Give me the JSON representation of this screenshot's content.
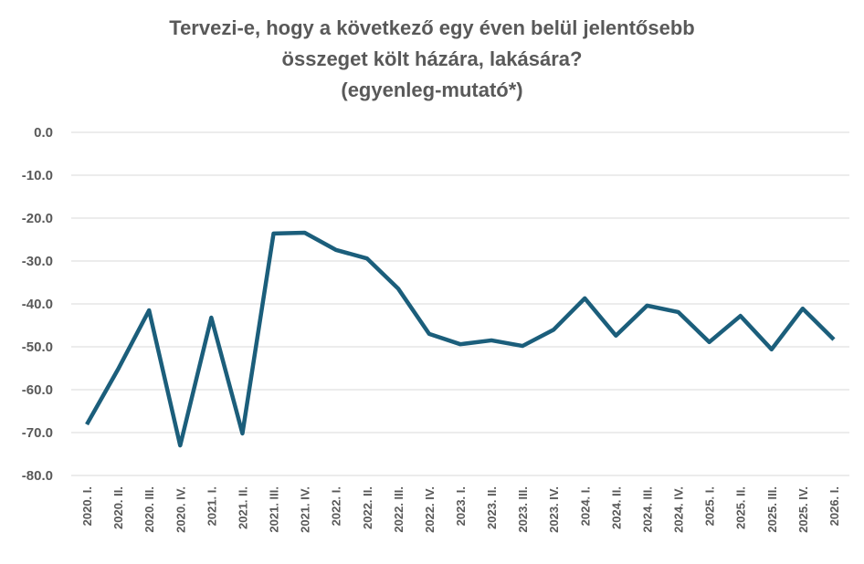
{
  "chart_data": {
    "type": "line",
    "title": [
      "Tervezi-e, hogy a következő egy éven belül jelentősebb",
      "összeget költ házára, lakására?",
      "(egyenleg-mutató*)"
    ],
    "categories": [
      "2020. I.",
      "2020. II.",
      "2020. III.",
      "2020. IV.",
      "2021. I.",
      "2021. II.",
      "2021. III.",
      "2021. IV.",
      "2022. I.",
      "2022. II.",
      "2022. III.",
      "2022. IV.",
      "2023. I.",
      "2023. II.",
      "2023. III.",
      "2023. IV.",
      "2024. I.",
      "2024. II.",
      "2024. III.",
      "2024. IV.",
      "2025. I.",
      "2025. II.",
      "2025. III.",
      "2025. IV.",
      "2026. I."
    ],
    "series": [
      {
        "color": "#1b5e7b",
        "values": [
          -68.1,
          -55.3,
          -41.5,
          -73,
          -43.2,
          -70.2,
          -23.6,
          -23.4,
          -27.4,
          -29.4,
          -36.4,
          -47,
          -49.4,
          -48.5,
          -49.8,
          -46,
          -38.7,
          -47.4,
          -40.4,
          -41.9,
          -48.9,
          -42.8,
          -50.6,
          -41.1,
          -48.3
        ]
      }
    ],
    "ylim": [
      -80,
      0
    ],
    "yticks": [
      {
        "value": 0,
        "label": "0.0"
      },
      {
        "value": -10,
        "label": "-10.0"
      },
      {
        "value": -20,
        "label": "-20.0"
      },
      {
        "value": -30,
        "label": "-30.0"
      },
      {
        "value": -40,
        "label": "-40.0"
      },
      {
        "value": -50,
        "label": "-50.0"
      },
      {
        "value": -60,
        "label": "-60.0"
      },
      {
        "value": -70,
        "label": "-70.0"
      },
      {
        "value": -80,
        "label": "-80.0"
      }
    ],
    "grid": true
  }
}
